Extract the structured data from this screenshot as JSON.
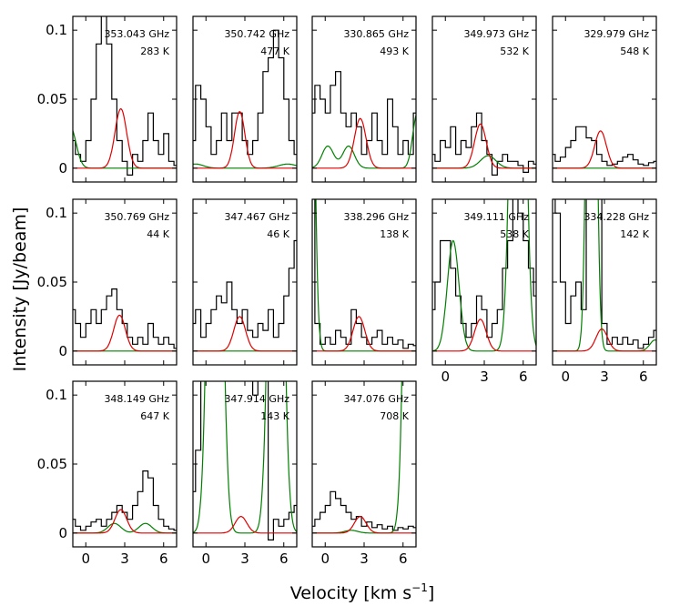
{
  "chart_data": {
    "type": "line",
    "xlabel": "Velocity [km s",
    "xlabel_sup": "−1",
    "xlabel_end": "]",
    "ylabel": "Intensity [Jy/beam]",
    "xlim": [
      -1,
      7
    ],
    "ylim": [
      -0.01,
      0.11
    ],
    "xticks": [
      0,
      3,
      6
    ],
    "xtick_labels": [
      "0",
      "3",
      "6"
    ],
    "yticks": [
      0,
      0.05,
      0.1
    ],
    "ytick_labels": [
      "0",
      "0.05",
      "0.1"
    ],
    "colors": {
      "observed": "#000000",
      "red_fit": "#e00000",
      "green_fit": "#008000"
    },
    "panels": [
      {
        "freq": "353.043 GHz",
        "temp": "283 K",
        "x": [
          -1,
          -0.6,
          -0.2,
          0.2,
          0.6,
          1,
          1.4,
          1.8,
          2.2,
          2.6,
          3,
          3.4,
          3.8,
          4.2,
          4.6,
          5,
          5.4,
          5.8,
          6.2,
          6.6,
          7
        ],
        "obs": [
          0.02,
          0.01,
          0.005,
          0.02,
          0.05,
          0.09,
          0.12,
          0.09,
          0.05,
          0.02,
          0.005,
          -0.005,
          0.01,
          0.005,
          0.02,
          0.04,
          0.02,
          0.01,
          0.025,
          0.005,
          0.002
        ],
        "red": {
          "amp": 0.043,
          "center": 2.7,
          "sigma": 0.45
        },
        "green": [
          {
            "amp": 0.03,
            "center": -1.2,
            "sigma": 0.45
          }
        ]
      },
      {
        "freq": "350.742 GHz",
        "temp": "477 K",
        "x": [
          -1,
          -0.6,
          -0.2,
          0.2,
          0.6,
          1,
          1.4,
          1.8,
          2.2,
          2.6,
          3,
          3.4,
          3.8,
          4.2,
          4.6,
          5,
          5.4,
          5.8,
          6.2,
          6.6,
          7
        ],
        "obs": [
          0.02,
          0.06,
          0.05,
          0.03,
          0.01,
          0.02,
          0.04,
          0.02,
          0.04,
          0.04,
          0.02,
          0.01,
          0.02,
          0.04,
          0.07,
          0.08,
          0.1,
          0.08,
          0.05,
          0.02,
          0.01
        ],
        "red": {
          "amp": 0.041,
          "center": 2.6,
          "sigma": 0.4
        },
        "green": [
          {
            "amp": 0.003,
            "center": -0.8,
            "sigma": 0.6
          },
          {
            "amp": 0.003,
            "center": 6.3,
            "sigma": 0.7
          }
        ]
      },
      {
        "freq": "330.865 GHz",
        "temp": "493 K",
        "x": [
          -1,
          -0.6,
          -0.2,
          0.2,
          0.6,
          1,
          1.4,
          1.8,
          2.2,
          2.6,
          3,
          3.4,
          3.8,
          4.2,
          4.6,
          5,
          5.4,
          5.8,
          6.2,
          6.6,
          7
        ],
        "obs": [
          0.04,
          0.06,
          0.05,
          0.04,
          0.06,
          0.07,
          0.04,
          0.03,
          0.04,
          0.03,
          0.01,
          0.02,
          0.04,
          0.02,
          0.01,
          0.05,
          0.03,
          0.01,
          0.02,
          0.01,
          0.04
        ],
        "red": {
          "amp": 0.036,
          "center": 2.7,
          "sigma": 0.45
        },
        "green": [
          {
            "amp": 0.016,
            "center": 0.2,
            "sigma": 0.45
          },
          {
            "amp": 0.016,
            "center": 1.8,
            "sigma": 0.45
          },
          {
            "amp": 0.04,
            "center": 7.1,
            "sigma": 0.35
          }
        ]
      },
      {
        "freq": "349.973 GHz",
        "temp": "532 K",
        "x": [
          -1,
          -0.6,
          -0.2,
          0.2,
          0.6,
          1,
          1.4,
          1.8,
          2.2,
          2.6,
          3,
          3.4,
          3.8,
          4.2,
          4.6,
          5,
          5.4,
          5.8,
          6.2,
          6.6,
          7
        ],
        "obs": [
          0.01,
          0.005,
          0.02,
          0.015,
          0.03,
          0.01,
          0.02,
          0.015,
          0.03,
          0.04,
          0.02,
          0.01,
          -0.005,
          0.005,
          0.01,
          0.005,
          0.005,
          0.002,
          -0.003,
          0.005,
          0.003
        ],
        "red": {
          "amp": 0.032,
          "center": 2.7,
          "sigma": 0.45
        },
        "green": [
          {
            "amp": 0.009,
            "center": 3.3,
            "sigma": 0.6
          }
        ]
      },
      {
        "freq": "329.979 GHz",
        "temp": "548 K",
        "x": [
          -1,
          -0.6,
          -0.2,
          0.2,
          0.6,
          1,
          1.4,
          1.8,
          2.2,
          2.6,
          3,
          3.4,
          3.8,
          4.2,
          4.6,
          5,
          5.4,
          5.8,
          6.2,
          6.6,
          7
        ],
        "obs": [
          0.01,
          0.005,
          0.008,
          0.015,
          0.02,
          0.03,
          0.03,
          0.022,
          0.02,
          0.01,
          0.005,
          0.002,
          0.003,
          0.005,
          0.008,
          0.01,
          0.006,
          0.003,
          0.002,
          0.004,
          0.005
        ],
        "red": {
          "amp": 0.027,
          "center": 2.7,
          "sigma": 0.45
        },
        "green": []
      },
      {
        "freq": "350.769 GHz",
        "temp": "44 K",
        "x": [
          -1,
          -0.6,
          -0.2,
          0.2,
          0.6,
          1,
          1.4,
          1.8,
          2.2,
          2.6,
          3,
          3.4,
          3.8,
          4.2,
          4.6,
          5,
          5.4,
          5.8,
          6.2,
          6.6,
          7
        ],
        "obs": [
          0.03,
          0.02,
          0.01,
          0.02,
          0.03,
          0.02,
          0.03,
          0.04,
          0.045,
          0.03,
          0.02,
          0.01,
          0.005,
          0.01,
          0.005,
          0.02,
          0.01,
          0.005,
          0.01,
          0.005,
          0.002
        ],
        "red": {
          "amp": 0.026,
          "center": 2.6,
          "sigma": 0.45
        },
        "green": []
      },
      {
        "freq": "347.467 GHz",
        "temp": "46 K",
        "x": [
          -1,
          -0.6,
          -0.2,
          0.2,
          0.6,
          1,
          1.4,
          1.8,
          2.2,
          2.6,
          3,
          3.4,
          3.8,
          4.2,
          4.6,
          5,
          5.4,
          5.8,
          6.2,
          6.6,
          7
        ],
        "obs": [
          0.02,
          0.03,
          0.01,
          0.02,
          0.03,
          0.04,
          0.035,
          0.05,
          0.03,
          0.02,
          0.03,
          0.015,
          0.01,
          0.02,
          0.015,
          0.03,
          0.01,
          0.02,
          0.04,
          0.06,
          0.08
        ],
        "red": {
          "amp": 0.025,
          "center": 2.6,
          "sigma": 0.45
        },
        "green": []
      },
      {
        "freq": "338.296 GHz",
        "temp": "138 K",
        "x": [
          -1,
          -0.6,
          -0.2,
          0.2,
          0.6,
          1,
          1.4,
          1.8,
          2.2,
          2.6,
          3,
          3.4,
          3.8,
          4.2,
          4.6,
          5,
          5.4,
          5.8,
          6.2,
          6.6,
          7
        ],
        "obs": [
          0.15,
          0.02,
          0.005,
          0.01,
          0.005,
          0.015,
          0.01,
          0.005,
          0.03,
          0.02,
          0.01,
          0.005,
          0.01,
          0.015,
          0.005,
          0.01,
          0.005,
          0.008,
          0.002,
          0.005,
          0.004
        ],
        "red": {
          "amp": 0.025,
          "center": 2.6,
          "sigma": 0.45
        },
        "green": [
          {
            "amp": 0.4,
            "center": -1.2,
            "sigma": 0.3
          }
        ]
      },
      {
        "freq": "349.111 GHz",
        "temp": "538 K",
        "x": [
          -1,
          -0.6,
          -0.2,
          0.2,
          0.6,
          1,
          1.4,
          1.8,
          2.2,
          2.6,
          3,
          3.4,
          3.8,
          4.2,
          4.6,
          5,
          5.4,
          5.8,
          6.2,
          6.6,
          7
        ],
        "obs": [
          0.03,
          0.05,
          0.08,
          0.08,
          0.06,
          0.04,
          0.02,
          0.01,
          0.02,
          0.04,
          0.03,
          0.01,
          0.02,
          0.03,
          0.06,
          0.08,
          0.12,
          0.1,
          0.08,
          0.06,
          0.04
        ],
        "red": {
          "amp": 0.023,
          "center": 2.7,
          "sigma": 0.45
        },
        "green": [
          {
            "amp": 0.08,
            "center": 0.6,
            "sigma": 0.45
          },
          {
            "amp": 0.5,
            "center": 5.6,
            "sigma": 0.45
          }
        ]
      },
      {
        "freq": "334.228 GHz",
        "temp": "142 K",
        "x": [
          -1,
          -0.6,
          -0.2,
          0.2,
          0.6,
          1,
          1.4,
          1.8,
          2.2,
          2.6,
          3,
          3.4,
          3.8,
          4.2,
          4.6,
          5,
          5.4,
          5.8,
          6.2,
          6.6,
          7
        ],
        "obs": [
          0.12,
          0.1,
          0.05,
          0.02,
          0.04,
          0.05,
          0.03,
          0.15,
          0.2,
          0.15,
          0.02,
          0.005,
          0.01,
          0.005,
          0.01,
          0.005,
          0.008,
          0.002,
          0.005,
          0.01,
          0.015
        ],
        "red": {
          "amp": 0.016,
          "center": 2.8,
          "sigma": 0.45
        },
        "green": [
          {
            "amp": 0.5,
            "center": 2.0,
            "sigma": 0.3
          },
          {
            "amp": 0.008,
            "center": 6.9,
            "sigma": 0.4
          }
        ]
      },
      {
        "freq": "348.149 GHz",
        "temp": "647 K",
        "x": [
          -1,
          -0.6,
          -0.2,
          0.2,
          0.6,
          1,
          1.4,
          1.8,
          2.2,
          2.6,
          3,
          3.4,
          3.8,
          4.2,
          4.6,
          5,
          5.4,
          5.8,
          6.2,
          6.6,
          7
        ],
        "obs": [
          0.01,
          0.005,
          0.002,
          0.005,
          0.008,
          0.01,
          0.005,
          0.01,
          0.015,
          0.02,
          0.015,
          0.01,
          0.02,
          0.03,
          0.045,
          0.04,
          0.02,
          0.01,
          0.005,
          0.003,
          0.002
        ],
        "red": {
          "amp": 0.017,
          "center": 2.7,
          "sigma": 0.45
        },
        "green": [
          {
            "amp": 0.007,
            "center": 2.2,
            "sigma": 0.5
          },
          {
            "amp": 0.007,
            "center": 4.6,
            "sigma": 0.5
          }
        ]
      },
      {
        "freq": "347.914 GHz",
        "temp": "143 K",
        "x": [
          -1,
          -0.6,
          -0.2,
          0.2,
          0.6,
          1,
          1.4,
          1.8,
          2.2,
          2.6,
          3,
          3.4,
          3.8,
          4.2,
          4.6,
          5,
          5.4,
          5.8,
          6.2,
          6.6,
          7
        ],
        "obs": [
          0.03,
          0.06,
          0.12,
          0.15,
          0.16,
          0.14,
          0.13,
          0.12,
          0.12,
          0.14,
          0.13,
          0.12,
          0.1,
          0.13,
          0.12,
          -0.005,
          0.01,
          0.005,
          0.01,
          0.015,
          0.02
        ],
        "red": {
          "amp": 0.012,
          "center": 2.7,
          "sigma": 0.45
        },
        "green": [
          {
            "amp": 0.5,
            "center": 0.7,
            "sigma": 0.45
          },
          {
            "amp": 0.5,
            "center": 5.4,
            "sigma": 0.45
          }
        ]
      },
      {
        "freq": "347.076 GHz",
        "temp": "708 K",
        "x": [
          -1,
          -0.6,
          -0.2,
          0.2,
          0.6,
          1,
          1.4,
          1.8,
          2.2,
          2.6,
          3,
          3.4,
          3.8,
          4.2,
          4.6,
          5,
          5.4,
          5.8,
          6.2,
          6.6,
          7
        ],
        "obs": [
          0.005,
          0.01,
          0.015,
          0.02,
          0.03,
          0.025,
          0.02,
          0.015,
          0.01,
          0.012,
          0.005,
          0.008,
          0.004,
          0.006,
          0.003,
          0.005,
          0.002,
          0.004,
          0.003,
          0.005,
          0.004
        ],
        "red": {
          "amp": 0.012,
          "center": 2.7,
          "sigma": 0.45
        },
        "green": [
          {
            "amp": 0.002,
            "center": 2.0,
            "sigma": 0.5
          },
          {
            "amp": 0.5,
            "center": 6.6,
            "sigma": 0.4
          }
        ]
      }
    ]
  }
}
